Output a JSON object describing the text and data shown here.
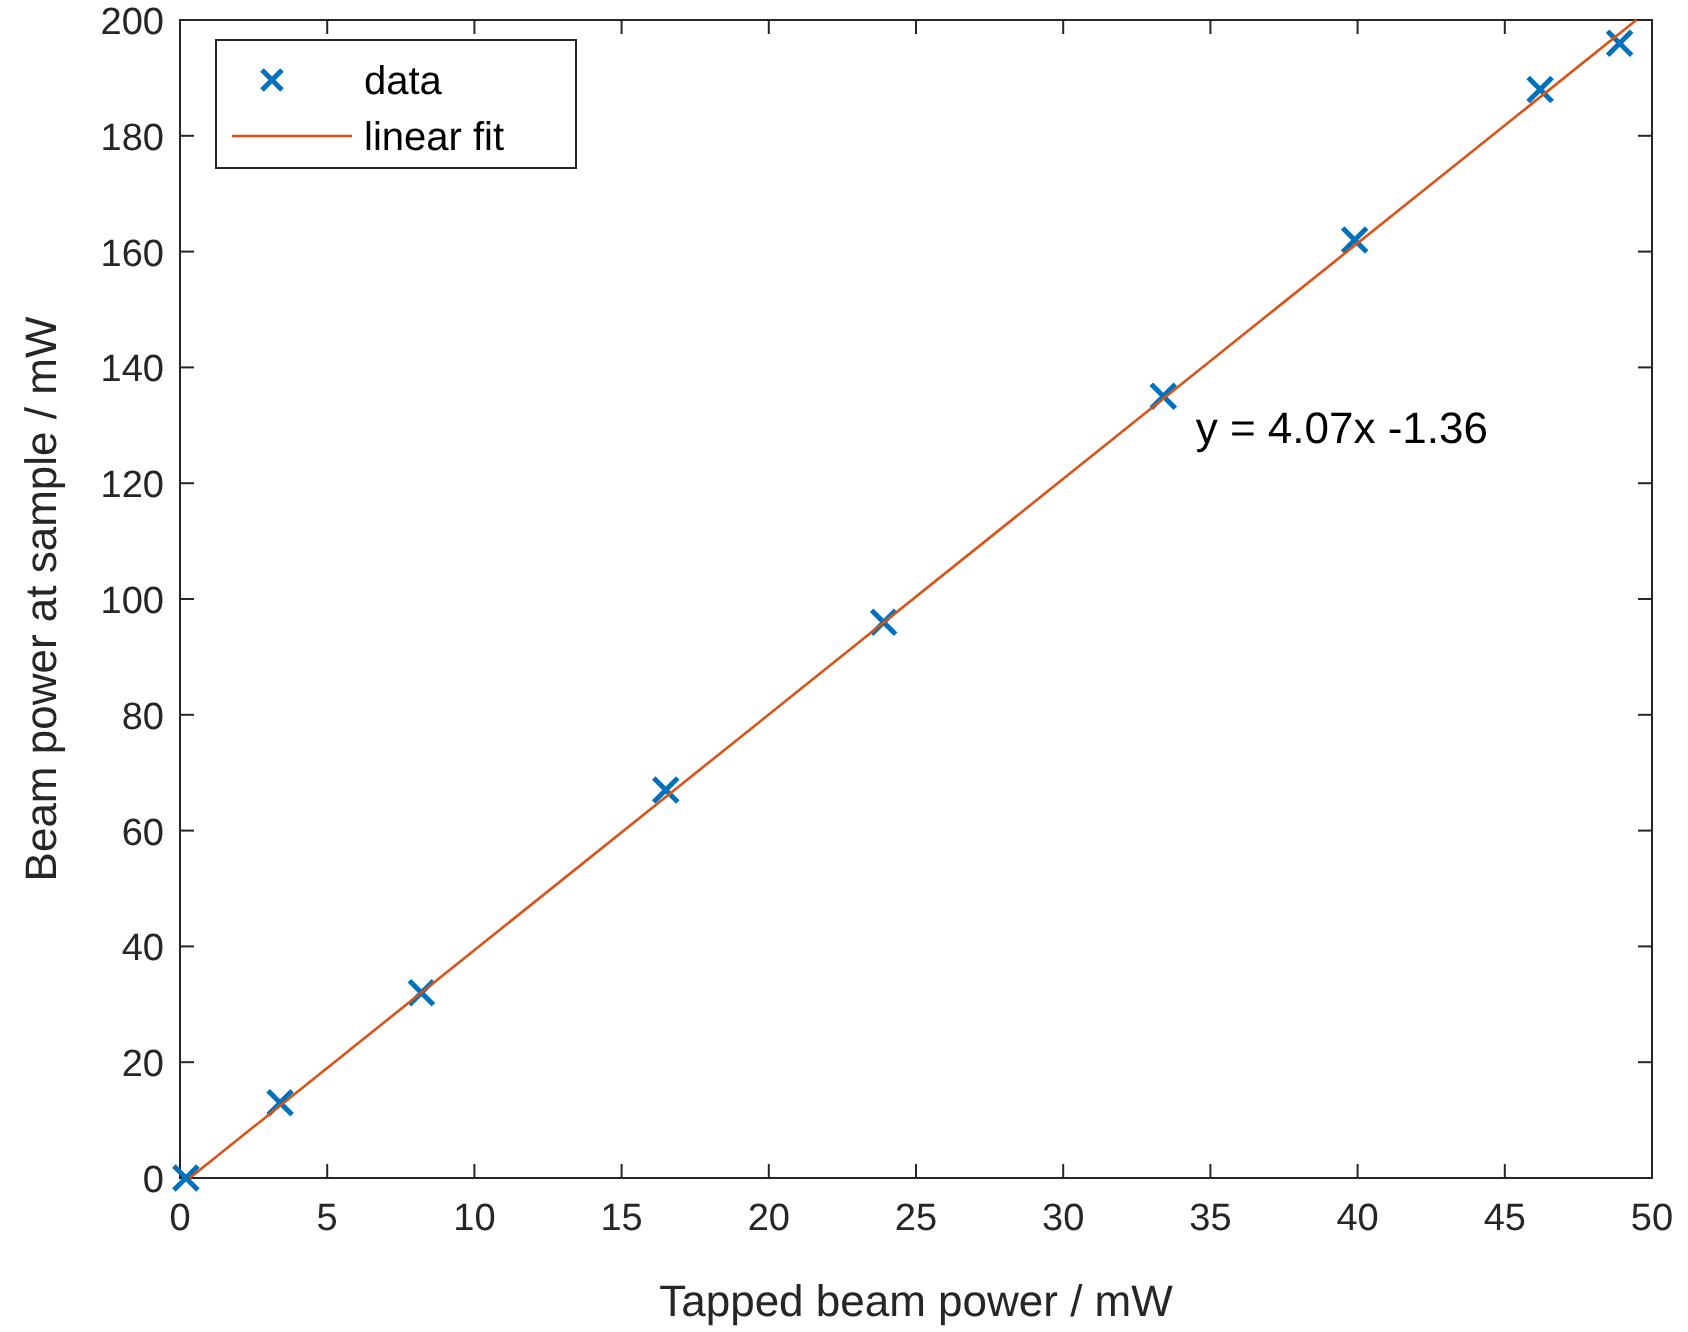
{
  "chart_data": {
    "type": "scatter",
    "xlabel": "Tapped beam power / mW",
    "ylabel": "Beam power at sample / mW",
    "xlim": [
      0,
      50
    ],
    "xticks": [
      0,
      5,
      10,
      15,
      20,
      25,
      30,
      35,
      40,
      45,
      50
    ],
    "ylim": [
      0,
      200
    ],
    "yticks": [
      0,
      20,
      40,
      60,
      80,
      100,
      120,
      140,
      160,
      180,
      200
    ],
    "grid": false,
    "legend": "top left",
    "series": [
      {
        "name": "data",
        "marker": "cross",
        "color": "#0072bd",
        "x": [
          0.2,
          3.4,
          8.2,
          16.5,
          23.9,
          33.4,
          39.9,
          46.2,
          48.9
        ],
        "values": [
          0,
          13,
          32,
          67,
          96,
          135,
          162,
          188,
          196
        ]
      },
      {
        "name": "linear fit",
        "type": "line",
        "color": "#d95319",
        "x": [
          0.33,
          49.47
        ],
        "values": [
          0,
          200
        ]
      }
    ],
    "annotations": [
      "y = 4.07x -1.36"
    ]
  }
}
